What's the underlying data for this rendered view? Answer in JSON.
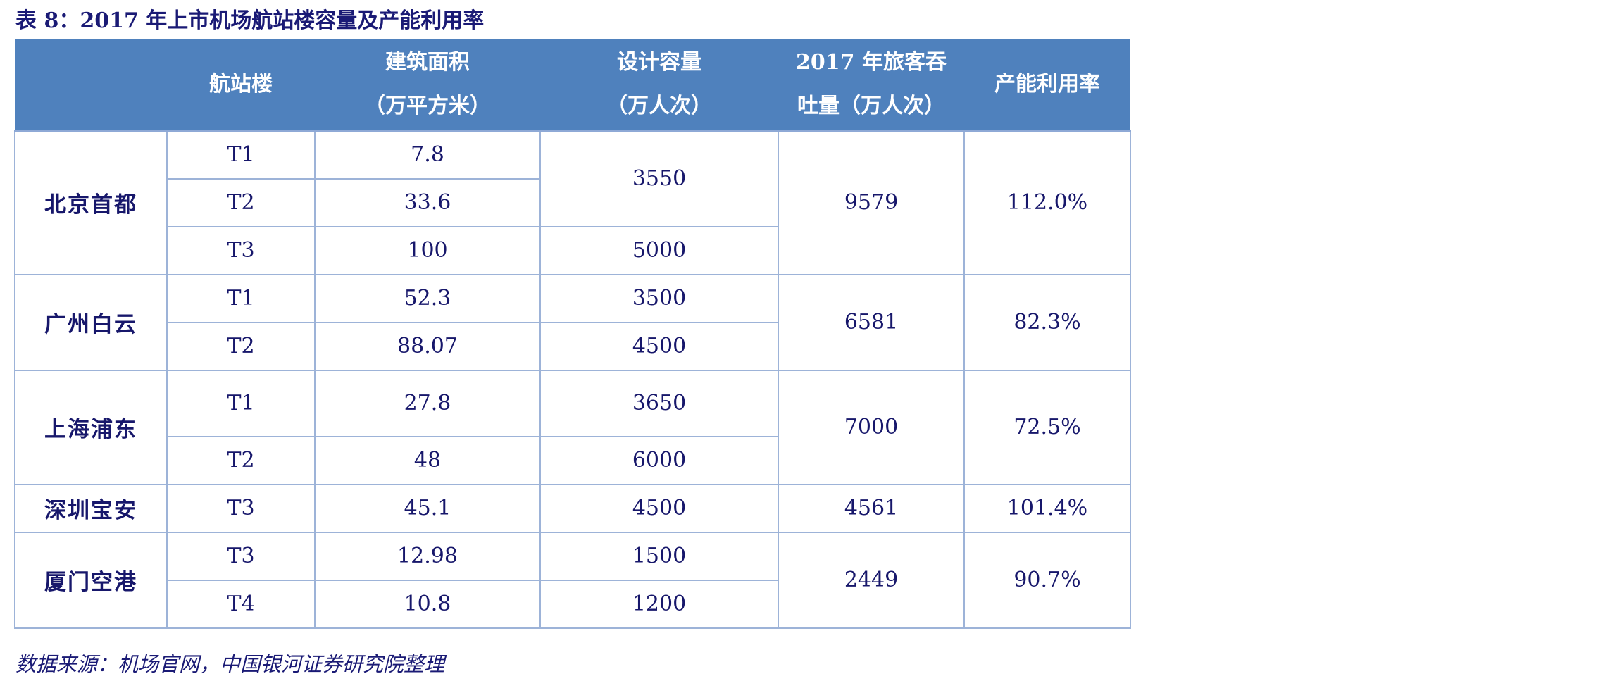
{
  "title": "表 8：2017 年上市机场航站楼容量及产能利用率",
  "header": {
    "col0": "",
    "col1": "航站楼",
    "col2_line1": "建筑面积",
    "col2_line2": "（万平方米）",
    "col3_line1": "设计容量",
    "col3_line2": "（万人次）",
    "col4_line1": "2017 年旅客吞",
    "col4_line2": "吐量（万人次）",
    "col5": "产能利用率"
  },
  "rows": {
    "bj": {
      "airport": "北京首都",
      "t1": {
        "terminal": "T1",
        "area": "7.8"
      },
      "t2": {
        "terminal": "T2",
        "area": "33.6"
      },
      "t3": {
        "terminal": "T3",
        "area": "100",
        "capacity": "5000"
      },
      "capacity_t1t2": "3550",
      "throughput": "9579",
      "utilization": "112.0%"
    },
    "gz": {
      "airport": "广州白云",
      "t1": {
        "terminal": "T1",
        "area": "52.3",
        "capacity": "3500"
      },
      "t2": {
        "terminal": "T2",
        "area": "88.07",
        "capacity": "4500"
      },
      "throughput": "6581",
      "utilization": "82.3%"
    },
    "sh": {
      "airport": "上海浦东",
      "t1": {
        "terminal": "T1",
        "area": "27.8",
        "capacity": "3650"
      },
      "t2": {
        "terminal": "T2",
        "area": "48",
        "capacity": "6000"
      },
      "throughput": "7000",
      "utilization": "72.5%"
    },
    "sz": {
      "airport": "深圳宝安",
      "t3": {
        "terminal": "T3",
        "area": "45.1",
        "capacity": "4500"
      },
      "throughput": "4561",
      "utilization": "101.4%"
    },
    "xm": {
      "airport": "厦门空港",
      "t3": {
        "terminal": "T3",
        "area": "12.98",
        "capacity": "1500"
      },
      "t4": {
        "terminal": "T4",
        "area": "10.8",
        "capacity": "1200"
      },
      "throughput": "2449",
      "utilization": "90.7%"
    }
  },
  "source": "数据来源：机场官网，中国银河证券研究院整理"
}
